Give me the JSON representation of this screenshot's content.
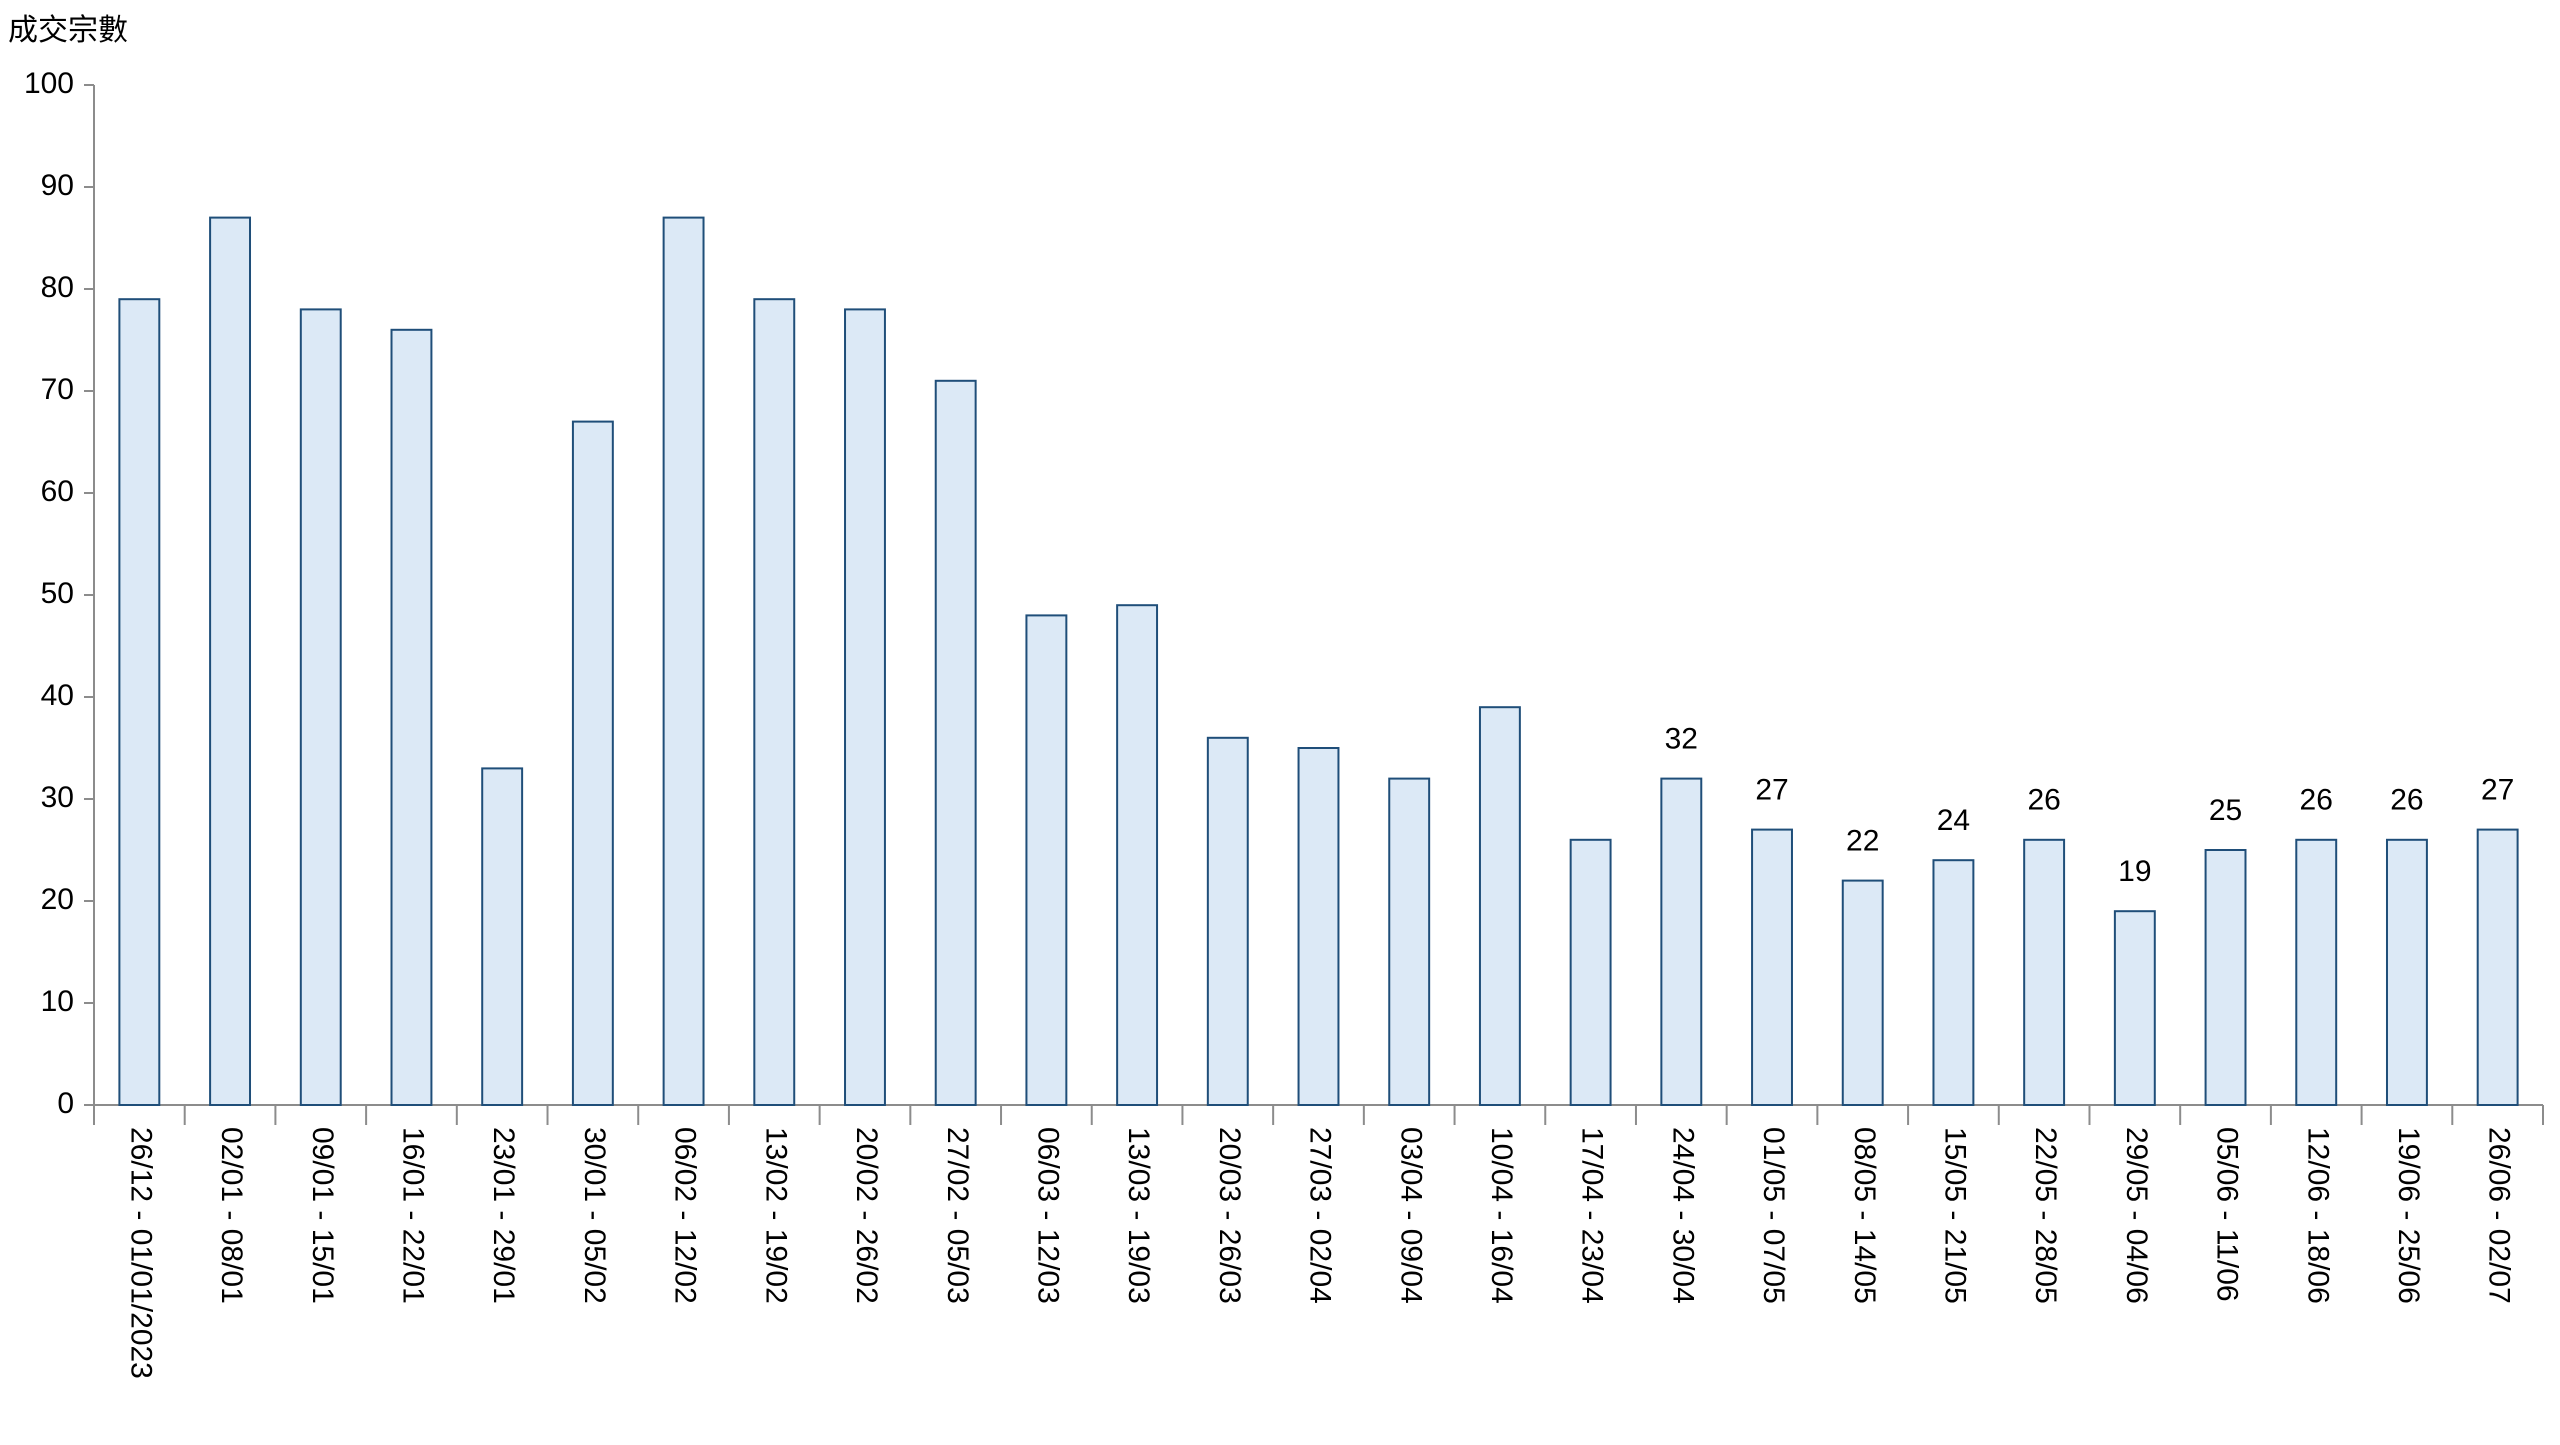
{
  "chart_data": {
    "type": "bar",
    "y_label": "成交宗數",
    "categories": [
      "26/12 - 01/01/2023",
      "02/01 - 08/01",
      "09/01 - 15/01",
      "16/01 - 22/01",
      "23/01 - 29/01",
      "30/01 - 05/02",
      "06/02 - 12/02",
      "13/02 - 19/02",
      "20/02 - 26/02",
      "27/02 - 05/03",
      "06/03 - 12/03",
      "13/03 - 19/03",
      "20/03 - 26/03",
      "27/03 - 02/04",
      "03/04 - 09/04",
      "10/04 - 16/04",
      "17/04 - 23/04",
      "24/04 - 30/04",
      "01/05 - 07/05",
      "08/05 - 14/05",
      "15/05 - 21/05",
      "22/05 - 28/05",
      "29/05 - 04/06",
      "05/06 - 11/06",
      "12/06 - 18/06",
      "19/06 - 25/06",
      "26/06 - 02/07"
    ],
    "values": [
      79,
      87,
      78,
      76,
      33,
      67,
      87,
      79,
      78,
      71,
      48,
      49,
      36,
      35,
      32,
      39,
      26,
      32,
      27,
      22,
      24,
      26,
      19,
      25,
      26,
      26,
      27
    ],
    "value_labels": [
      null,
      null,
      null,
      null,
      null,
      null,
      null,
      null,
      null,
      null,
      null,
      null,
      null,
      null,
      null,
      null,
      null,
      "32",
      "27",
      "22",
      "24",
      "26",
      "19",
      "25",
      "26",
      "26",
      "27"
    ],
    "color": "#dce9f6",
    "edge_color": "#1f4e79",
    "ylim": [
      0,
      100
    ],
    "yticks": [
      0,
      10,
      20,
      30,
      40,
      50,
      60,
      70,
      80,
      90,
      100
    ],
    "grid": false
  }
}
